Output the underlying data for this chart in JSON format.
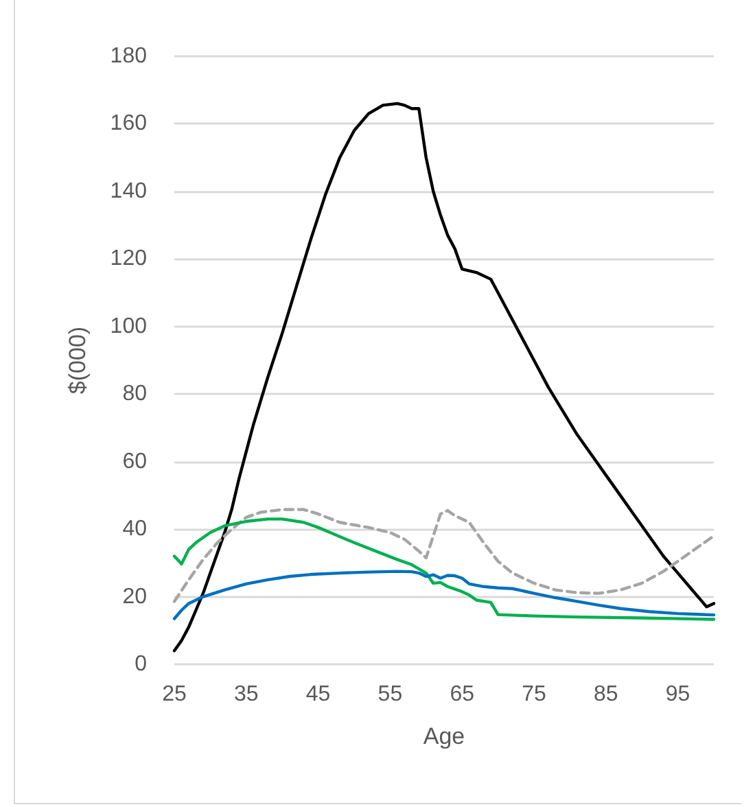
{
  "chart_data": {
    "type": "line",
    "xlabel": "Age",
    "ylabel": "$(000)",
    "xlim": [
      25,
      100
    ],
    "xticks": [
      25,
      35,
      45,
      55,
      65,
      75,
      85,
      95
    ],
    "ylim": [
      0,
      180
    ],
    "yticks": [
      0,
      20,
      40,
      60,
      80,
      100,
      120,
      140,
      160,
      180
    ],
    "grid": "y",
    "marker": "none",
    "series": [
      {
        "color": "#000000",
        "line_style": "solid",
        "x": [
          25,
          26,
          27,
          28,
          29,
          30,
          31,
          32,
          33,
          34,
          35,
          36,
          37,
          38,
          40,
          42,
          44,
          46,
          48,
          50,
          52,
          54,
          56,
          57,
          58,
          59,
          60,
          61,
          62,
          63,
          64,
          65,
          67,
          69,
          70,
          71,
          73,
          75,
          77,
          79,
          81,
          83,
          85,
          87,
          89,
          91,
          93,
          95,
          97,
          99,
          100
        ],
        "values": [
          4,
          7,
          11,
          16,
          21,
          27,
          33,
          39,
          46,
          55,
          63,
          71,
          78,
          85,
          98,
          112,
          126,
          139,
          150,
          158,
          163,
          165.5,
          166,
          165.5,
          164.5,
          164.5,
          150,
          140,
          133,
          127,
          123,
          117,
          116,
          114,
          110,
          106,
          98,
          90,
          82,
          75,
          68,
          62,
          56,
          50,
          44,
          38,
          32,
          27,
          22,
          17,
          18
        ]
      },
      {
        "color": "#a5a5a5",
        "line_style": "dashed",
        "x": [
          25,
          27,
          29,
          31,
          33,
          35,
          37,
          40,
          43,
          45,
          48,
          52,
          55,
          57,
          59,
          60,
          61,
          62,
          63,
          64,
          66,
          68,
          70,
          72,
          75,
          78,
          81,
          84,
          87,
          90,
          93,
          96,
          100
        ],
        "values": [
          18.6,
          25,
          31,
          36,
          40,
          43.5,
          45,
          45.8,
          45.8,
          44.5,
          42,
          40.5,
          39,
          37,
          33.5,
          31.5,
          38,
          44.5,
          45.5,
          44,
          42,
          36,
          30.5,
          27,
          24,
          22,
          21.2,
          21,
          22,
          24,
          27.5,
          32,
          38
        ]
      },
      {
        "color": "#00b050",
        "line_style": "solid",
        "x": [
          25,
          26,
          27,
          28,
          30,
          32,
          35,
          38,
          40,
          43,
          45,
          47,
          50,
          53,
          56,
          58,
          60,
          61,
          62,
          63,
          65,
          66,
          67,
          69,
          70,
          75,
          81,
          90,
          100
        ],
        "values": [
          32,
          29.7,
          34,
          36,
          39,
          41,
          42.3,
          43,
          43,
          42,
          40.5,
          38.7,
          36,
          33.5,
          31,
          29.5,
          27,
          24,
          24.2,
          23,
          21.5,
          20.5,
          19,
          18.3,
          14.7,
          14.3,
          14,
          13.7,
          13.3
        ]
      },
      {
        "color": "#0070c0",
        "line_style": "solid",
        "x": [
          25,
          26,
          27,
          29,
          32,
          35,
          38,
          41,
          44,
          48,
          52,
          56,
          58,
          59,
          60,
          61,
          62,
          63,
          64,
          65,
          66,
          68,
          70,
          72,
          75,
          78,
          81,
          84,
          87,
          91,
          95,
          100
        ],
        "values": [
          13.5,
          16,
          18,
          20,
          22,
          23.8,
          25,
          26,
          26.6,
          27,
          27.3,
          27.5,
          27.4,
          27,
          26,
          26.5,
          25.5,
          26.3,
          26.2,
          25.5,
          23.8,
          23,
          22.6,
          22.4,
          21,
          19.7,
          18.6,
          17.5,
          16.5,
          15.6,
          15,
          14.6
        ]
      }
    ]
  }
}
